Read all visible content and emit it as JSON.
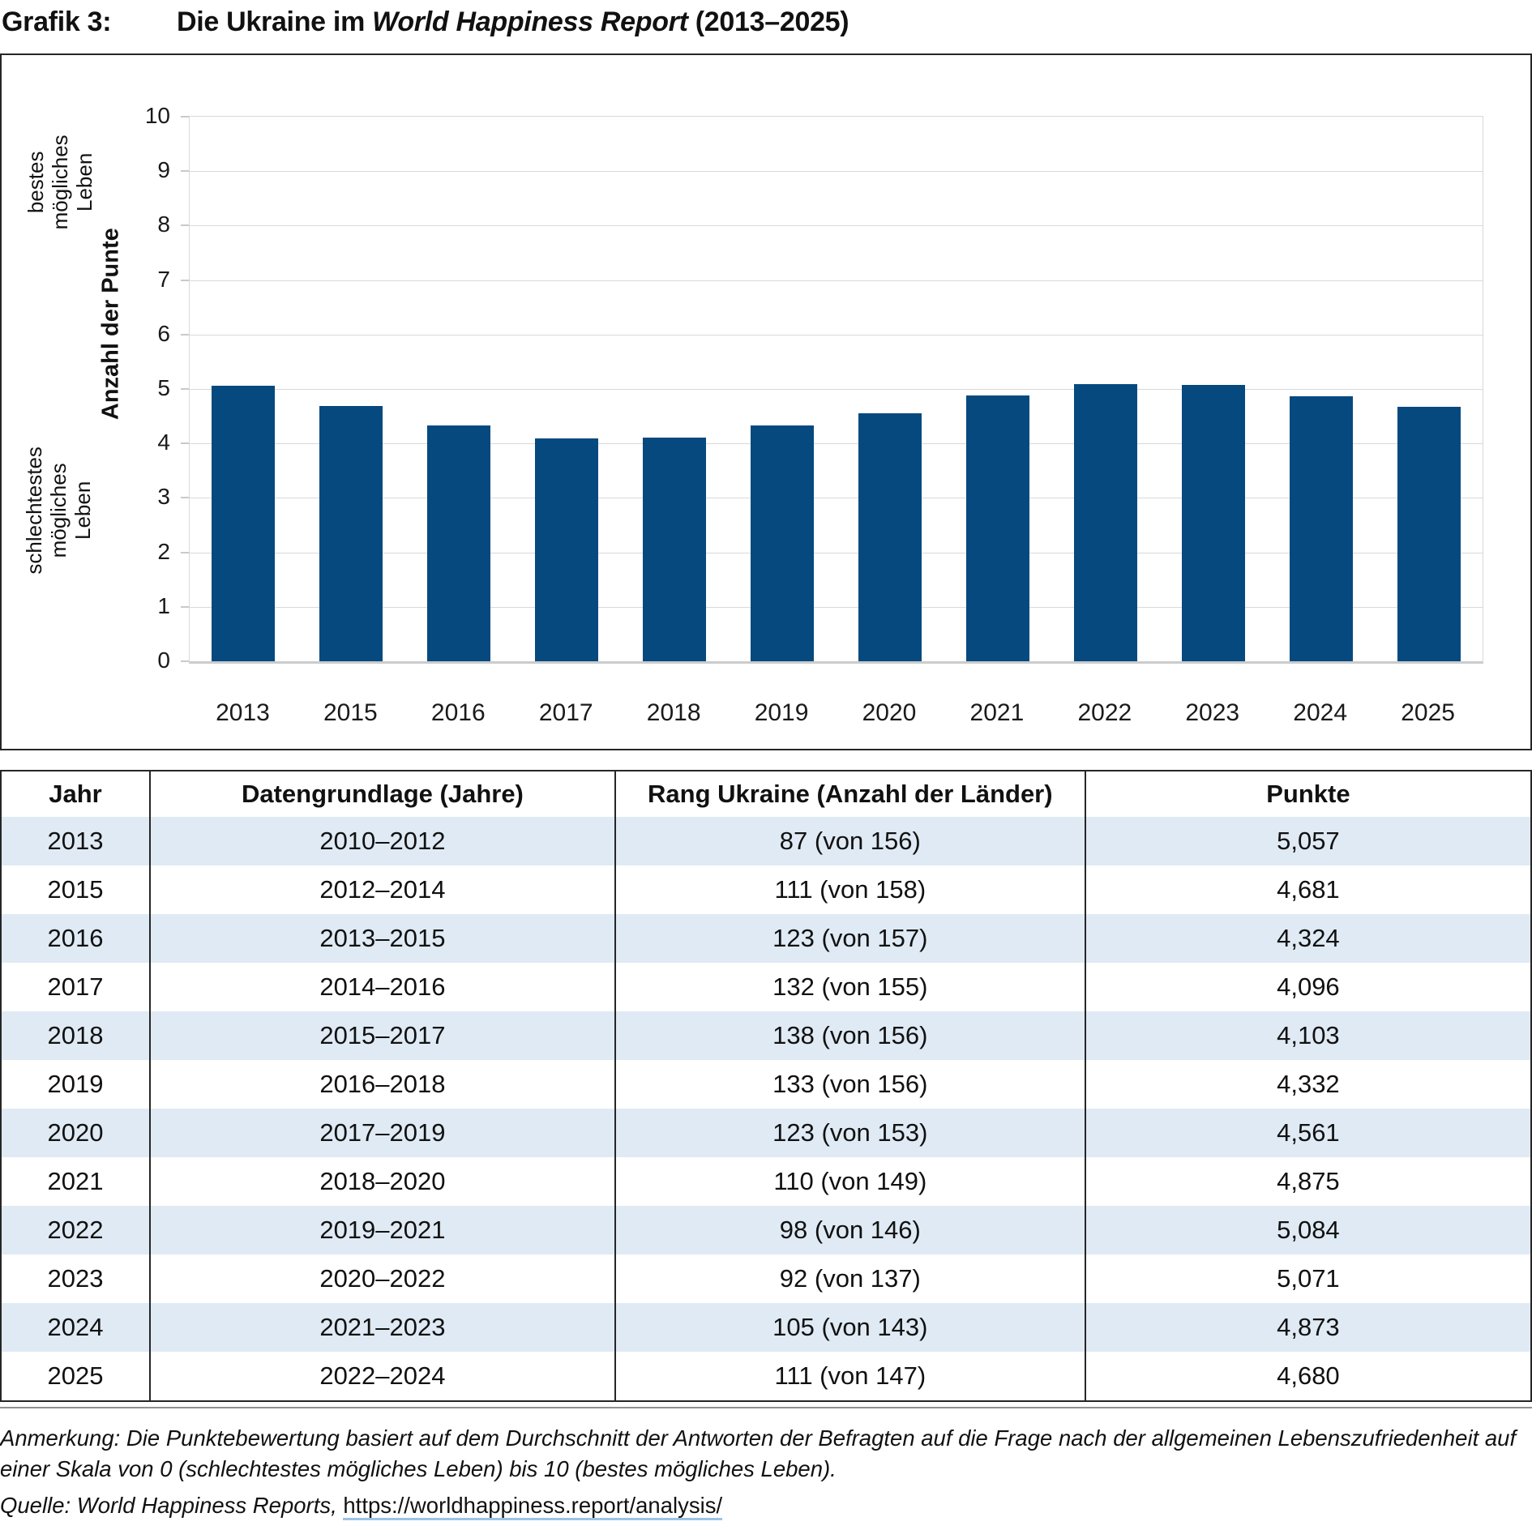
{
  "title": {
    "label": "Grafik 3:",
    "main_prefix": "Die Ukraine im ",
    "main_italic": "World Happiness Report",
    "main_suffix": " (2013–2025)"
  },
  "chart_data": {
    "type": "bar",
    "categories": [
      "2013",
      "2015",
      "2016",
      "2017",
      "2018",
      "2019",
      "2020",
      "2021",
      "2022",
      "2023",
      "2024",
      "2025"
    ],
    "values": [
      5.057,
      4.681,
      4.324,
      4.096,
      4.103,
      4.332,
      4.561,
      4.875,
      5.084,
      5.071,
      4.873,
      4.68
    ],
    "ylabel": "Anzahl der Punte",
    "y_top_annotation": "bestes\nmögliches\nLeben",
    "y_bottom_annotation": "schlechtestes\nmögliches\nLeben",
    "ylim": [
      0,
      10
    ],
    "yticks": [
      0,
      1,
      2,
      3,
      4,
      5,
      6,
      7,
      8,
      9,
      10
    ],
    "xlabel": "",
    "grid": true,
    "legend": "none",
    "bar_color": "#05497f",
    "gridline_color": "#d9d9d9"
  },
  "table": {
    "headers": [
      "Jahr",
      "Datengrundlage (Jahre)",
      "Rang Ukraine (Anzahl der Länder)",
      "Punkte"
    ],
    "rows": [
      [
        "2013",
        "2010–2012",
        "87 (von 156)",
        "5,057"
      ],
      [
        "2015",
        "2012–2014",
        "111 (von 158)",
        "4,681"
      ],
      [
        "2016",
        "2013–2015",
        "123 (von 157)",
        "4,324"
      ],
      [
        "2017",
        "2014–2016",
        "132 (von 155)",
        "4,096"
      ],
      [
        "2018",
        "2015–2017",
        "138 (von 156)",
        "4,103"
      ],
      [
        "2019",
        "2016–2018",
        "133 (von 156)",
        "4,332"
      ],
      [
        "2020",
        "2017–2019",
        "123 (von 153)",
        "4,561"
      ],
      [
        "2021",
        "2018–2020",
        "110 (von 149)",
        "4,875"
      ],
      [
        "2022",
        "2019–2021",
        "98 (von 146)",
        "5,084"
      ],
      [
        "2023",
        "2020–2022",
        "92 (von 137)",
        "5,071"
      ],
      [
        "2024",
        "2021–2023",
        "105 (von 143)",
        "4,873"
      ],
      [
        "2025",
        "2022–2024",
        "111 (von 147)",
        "4,680"
      ]
    ],
    "stripe_color": "#dfeaf4"
  },
  "footnotes": {
    "anmerkung": "Anmerkung: Die Punktebewertung basiert auf dem Durchschnitt der Antworten der Befragten auf die Frage nach der allgemeinen Lebenszufriedenheit auf einer Skala von 0 (schlechtestes mögliches Leben) bis 10 (bestes mögliches Leben).",
    "quelle_prefix": "Quelle: World Happiness Reports, ",
    "quelle_link": "https://worldhappiness.report/analysis/"
  }
}
